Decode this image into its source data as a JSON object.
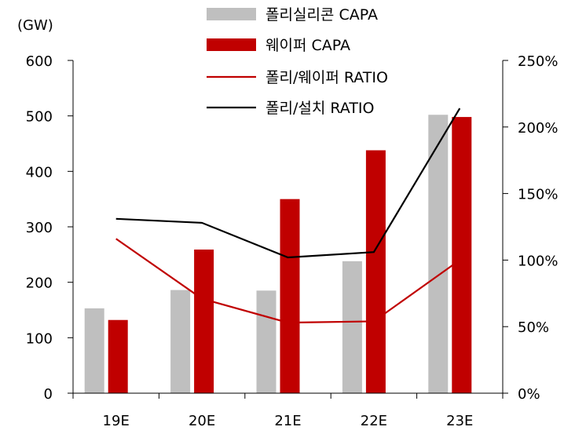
{
  "chart_data": {
    "type": "bar",
    "unit_label": "(GW)",
    "categories": [
      "19E",
      "20E",
      "21E",
      "22E",
      "23E"
    ],
    "y_left": {
      "ylim": [
        0,
        600
      ],
      "ticks": [
        "0",
        "100",
        "200",
        "300",
        "400",
        "500",
        "600"
      ]
    },
    "y_right": {
      "ylim": [
        0,
        250
      ],
      "ticks": [
        "0%",
        "50%",
        "100%",
        "150%",
        "200%",
        "250%"
      ]
    },
    "series": [
      {
        "name": "폴리실리콘 CAPA",
        "kind": "bar",
        "axis": "left",
        "color": "#bfbfbf",
        "values": [
          153,
          186,
          185,
          238,
          502
        ]
      },
      {
        "name": "웨이퍼 CAPA",
        "kind": "bar",
        "axis": "left",
        "color": "#c00000",
        "values": [
          132,
          259,
          350,
          438,
          498
        ]
      },
      {
        "name": "폴리/웨이퍼 RATIO",
        "kind": "line",
        "axis": "right",
        "color": "#c00000",
        "values": [
          116,
          71,
          53,
          54,
          100
        ]
      },
      {
        "name": "폴리/설치 RATIO",
        "kind": "line",
        "axis": "right",
        "color": "#000000",
        "values": [
          131,
          128,
          102,
          106,
          214
        ]
      }
    ],
    "legend_position": "top"
  }
}
